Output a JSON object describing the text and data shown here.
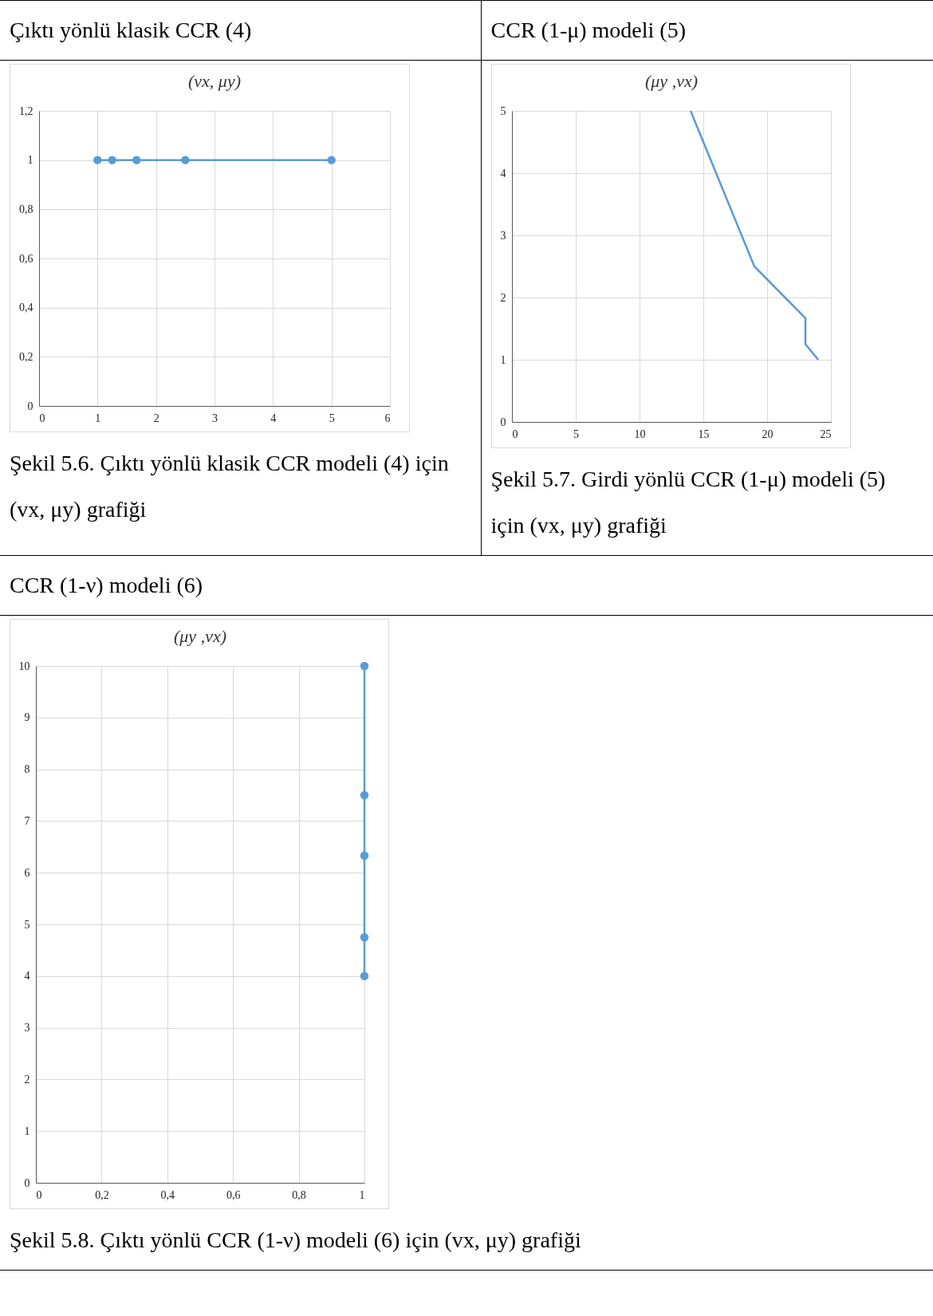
{
  "chart_data": [
    {
      "type": "line",
      "title": "(vx, μy)",
      "x": [
        1,
        1.25,
        1.667,
        2.5,
        5
      ],
      "series": [
        {
          "color": "#5b9bd5",
          "values": [
            1,
            1,
            1,
            1,
            1
          ]
        }
      ],
      "xlim": [
        0,
        6
      ],
      "xticks": [
        0,
        1,
        2,
        3,
        4,
        5,
        6
      ],
      "ylim": [
        0,
        1.2
      ],
      "yticks": [
        0,
        {
          "value": 0.2,
          "label": "0,2"
        },
        {
          "value": 0.4,
          "label": "0,4"
        },
        {
          "value": 0.6,
          "label": "0,6"
        },
        {
          "value": 0.8,
          "label": "0,8"
        },
        1,
        {
          "value": 1.2,
          "label": "1,2"
        }
      ],
      "grid": true,
      "marker": "circle",
      "line_style": "solid",
      "annotations": [
        "Çıktı yönlü klasik CCR (4)",
        "Şekil 5.6.  Çıktı yönlü klasik CCR modeli (4)  için (vx, μy) grafiği"
      ]
    },
    {
      "type": "line",
      "title": "(μy ,vx)",
      "x": [
        14,
        19,
        23,
        23,
        24
      ],
      "series": [
        {
          "color": "#5b9bd5",
          "values": [
            5,
            2.5,
            1.667,
            1.25,
            1
          ]
        }
      ],
      "xlim": [
        0,
        25
      ],
      "xticks": [
        0,
        5,
        10,
        15,
        20,
        25
      ],
      "ylim": [
        0,
        5
      ],
      "yticks": [
        0,
        1,
        2,
        3,
        4,
        5
      ],
      "grid": true,
      "marker": "none",
      "line_style": "solid",
      "annotations": [
        "CCR (1-μ) modeli (5)",
        "Şekil 5.7.  Girdi yönlü CCR (1-μ) modeli (5) için (vx, μy) grafiği"
      ]
    },
    {
      "type": "line",
      "title": "(μy ,vx)",
      "x": [
        1,
        1,
        1,
        1,
        1
      ],
      "series": [
        {
          "color": "#5b9bd5",
          "values": [
            10,
            7.5,
            6.33,
            4.75,
            4
          ]
        }
      ],
      "xlim": [
        0,
        1
      ],
      "xticks": [
        0,
        {
          "value": 0.2,
          "label": "0,2"
        },
        {
          "value": 0.4,
          "label": "0,4"
        },
        {
          "value": 0.6,
          "label": "0,6"
        },
        {
          "value": 0.8,
          "label": "0,8"
        },
        1
      ],
      "ylim": [
        0,
        10
      ],
      "yticks": [
        0,
        1,
        2,
        3,
        4,
        5,
        6,
        7,
        8,
        9,
        10
      ],
      "grid": true,
      "marker": "circle",
      "line_style": "solid",
      "annotations": [
        "CCR (1-ν) modeli (6)",
        "Şekil 5.8.  Çıktı yönlü CCR (1-ν) modeli (6) için (vx, μy) grafiği"
      ]
    }
  ]
}
